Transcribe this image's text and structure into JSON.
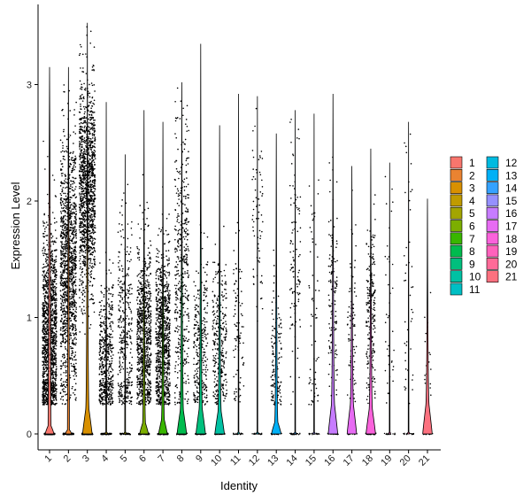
{
  "chart_data": {
    "type": "violin",
    "title": "",
    "xlabel": "Identity",
    "ylabel": "Expression Level",
    "ylim": [
      -0.18,
      3.6
    ],
    "y_ticks": [
      0,
      1,
      2,
      3
    ],
    "legend_position": "right",
    "grid": false,
    "categories": [
      "1",
      "2",
      "3",
      "4",
      "5",
      "6",
      "7",
      "8",
      "9",
      "10",
      "11",
      "12",
      "13",
      "14",
      "15",
      "16",
      "17",
      "18",
      "19",
      "20",
      "21"
    ],
    "colors": [
      "#F8766D",
      "#EA8331",
      "#D89000",
      "#C09B00",
      "#A3A500",
      "#7CAE00",
      "#39B600",
      "#00BB4E",
      "#00BF7D",
      "#00C1A3",
      "#00BFC4",
      "#00BAE0",
      "#00B0F6",
      "#35A2FF",
      "#9590FF",
      "#C77CFF",
      "#E76BF3",
      "#FA62DB",
      "#FF62BC",
      "#FF6A98",
      "#FC717F"
    ],
    "max_expression": [
      3.15,
      3.15,
      3.53,
      2.85,
      2.4,
      2.78,
      2.68,
      3.02,
      3.35,
      2.65,
      2.92,
      2.9,
      2.58,
      2.78,
      2.75,
      2.92,
      2.3,
      2.45,
      2.33,
      2.68,
      2.02
    ],
    "violin_peak_width": [
      0.45,
      0.3,
      0.5,
      0.12,
      0.12,
      0.45,
      0.45,
      0.5,
      0.5,
      0.5,
      0.1,
      0.1,
      0.5,
      0.1,
      0.1,
      0.5,
      0.5,
      0.5,
      0.1,
      0.1,
      0.5
    ],
    "violin_peak_height": [
      0.1,
      0.05,
      0.3,
      0.02,
      0.02,
      0.13,
      0.17,
      0.28,
      0.3,
      0.27,
      0.02,
      0.02,
      0.14,
      0.02,
      0.02,
      0.35,
      0.35,
      0.3,
      0.02,
      0.02,
      0.35
    ]
  }
}
